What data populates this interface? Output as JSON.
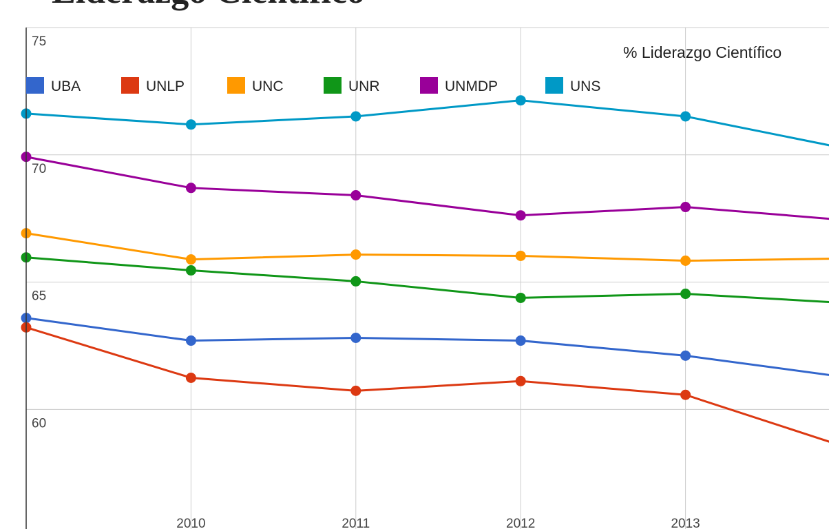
{
  "heading": "Liderazgo Científico",
  "chart_data": {
    "type": "line",
    "title": "% Liderazgo Científico",
    "categories": [
      null,
      "2010",
      "2011",
      "2012",
      "2013",
      null
    ],
    "series": [
      {
        "name": "UBA",
        "color": "#3366cc",
        "values": [
          63.59,
          62.7,
          62.81,
          62.7,
          62.11,
          61.24
        ]
      },
      {
        "name": "UNLP",
        "color": "#dc3912",
        "values": [
          63.22,
          61.24,
          60.73,
          61.11,
          60.57,
          58.46
        ]
      },
      {
        "name": "UNC",
        "color": "#ff9900",
        "values": [
          66.92,
          65.89,
          66.08,
          66.03,
          65.84,
          65.93
        ]
      },
      {
        "name": "UNR",
        "color": "#109618",
        "values": [
          65.97,
          65.46,
          65.03,
          64.38,
          64.54,
          64.17
        ]
      },
      {
        "name": "UNMDP",
        "color": "#990099",
        "values": [
          69.92,
          68.7,
          68.41,
          67.62,
          67.95,
          67.42
        ]
      },
      {
        "name": "UNS",
        "color": "#0099c6",
        "values": [
          71.62,
          71.19,
          71.51,
          72.14,
          71.51,
          70.21
        ]
      }
    ],
    "ylim": [
      55.3,
      75
    ],
    "yticks": [
      60,
      65,
      70,
      75
    ],
    "grid": true,
    "legend": "top"
  }
}
